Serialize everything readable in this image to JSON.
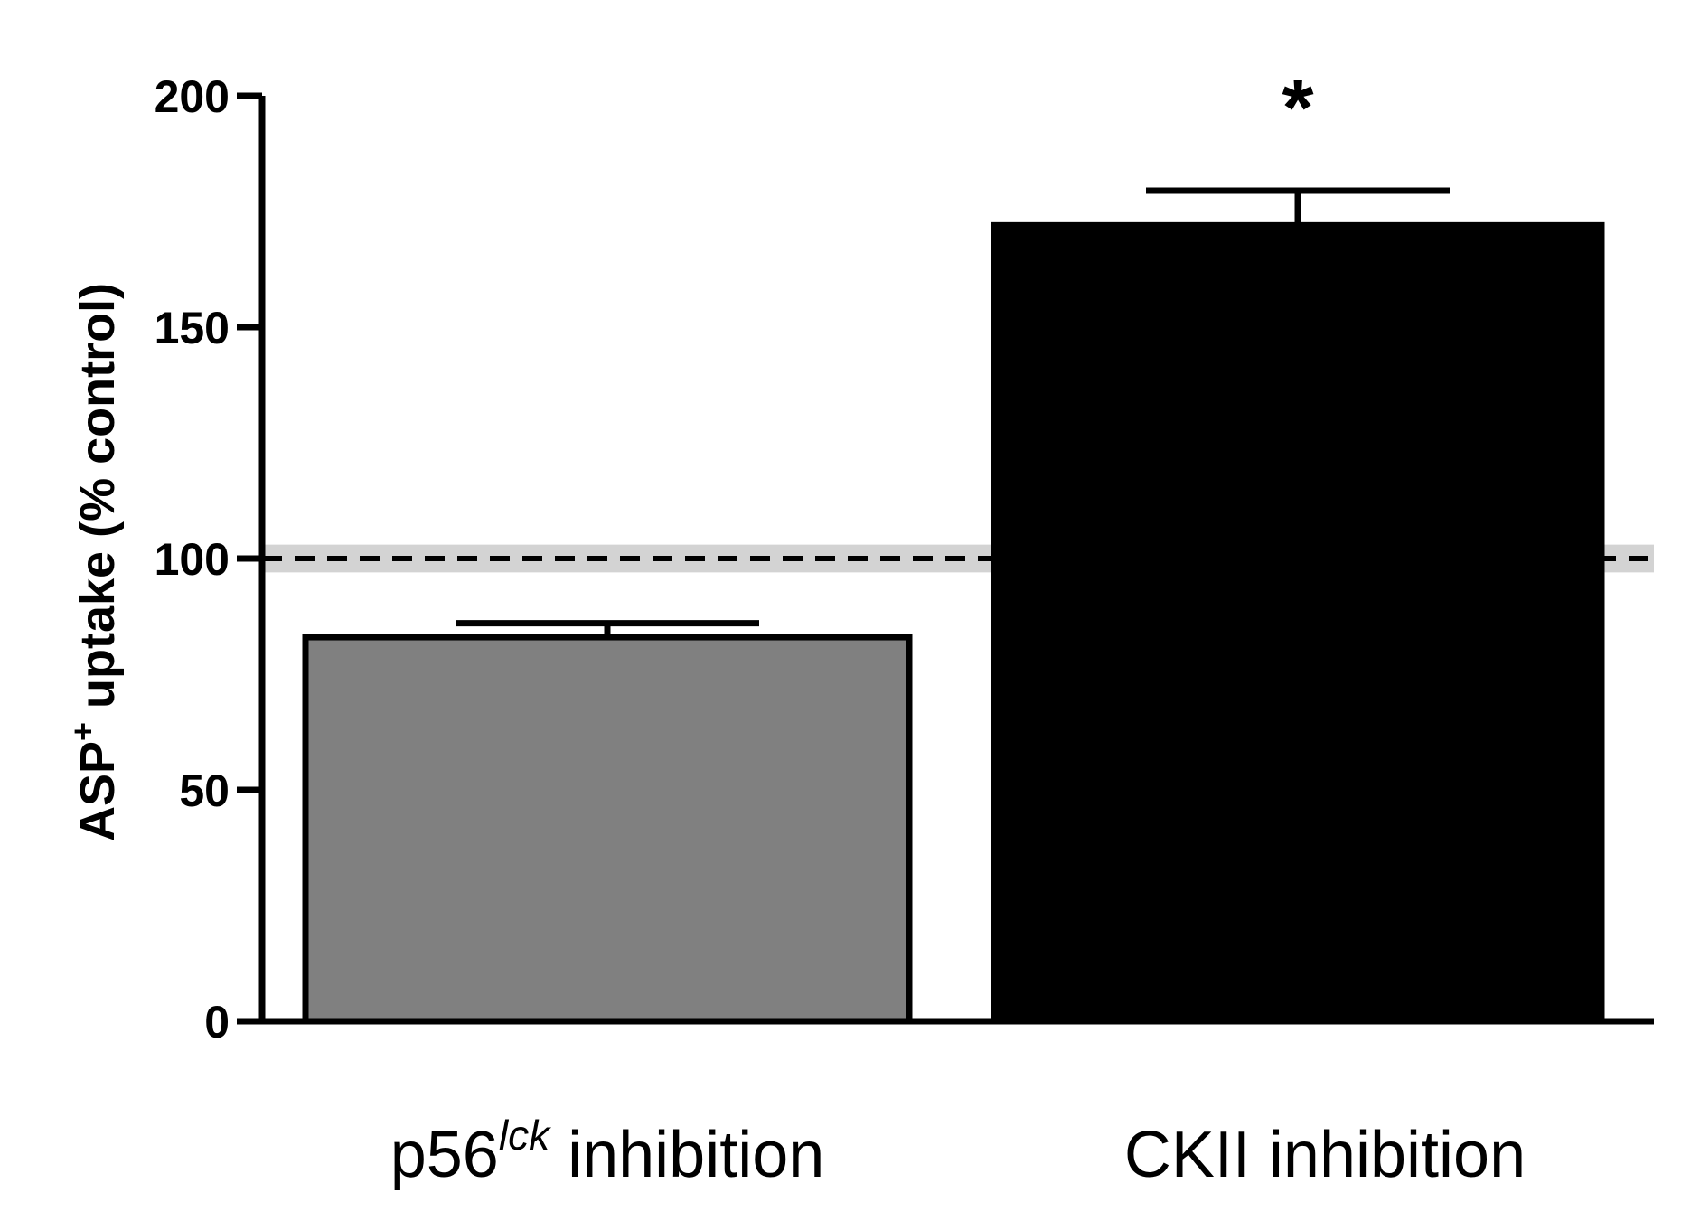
{
  "chart_data": {
    "type": "bar",
    "categories": [
      {
        "base": "p56",
        "sup": "lck",
        "rest": " inhibition"
      },
      {
        "base": "CKII inhibition",
        "sup": "",
        "rest": ""
      }
    ],
    "values": [
      83,
      172
    ],
    "errors": [
      3,
      7.5
    ],
    "bar_colors": [
      "#808080",
      "#000000"
    ],
    "significance": [
      "",
      "*"
    ],
    "ylabel": {
      "pre": "ASP",
      "sup": "+",
      "post": " uptake (% control)"
    },
    "ylim": [
      0,
      200
    ],
    "yticks": [
      0,
      50,
      100,
      150,
      200
    ],
    "reference_line": {
      "value": 100,
      "band": [
        97,
        103
      ],
      "style": "dashed",
      "band_color": "#d3d3d3"
    },
    "grid": false,
    "legend": "none"
  }
}
